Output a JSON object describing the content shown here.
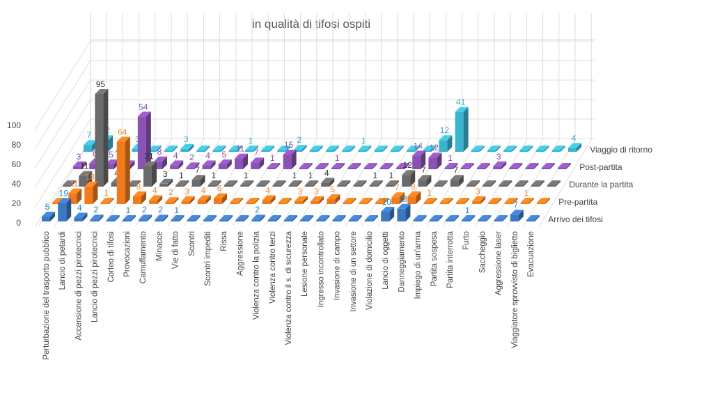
{
  "chart_data": {
    "type": "bar",
    "subtype": "3d-column",
    "title": "in qualità di tifosi ospiti",
    "ylim": [
      0,
      100
    ],
    "yticks": [
      0,
      20,
      40,
      60,
      80,
      100
    ],
    "grid": true,
    "legend": "row labels at right",
    "categories": [
      "Perturbazione del trasporto pubblico",
      "Lancio di petardi",
      "Accensione di pezzi pirotecnici",
      "Lancio di pezzi pirotecnici",
      "Corteo di tifosi",
      "Provocazioni",
      "Camuffamento",
      "Minacce",
      "Vie di fatto",
      "Scontri",
      "Scontri impediti",
      "Rissa",
      "Aggressione",
      "Violenza contro la polizia",
      "Violenza contro terzi",
      "Violenza contro il s. di sicurezza",
      "Lesione personale",
      "Ingresso incontrollato",
      "Invasione di campo",
      "Invasione di un settore",
      "Violazione di domicilio",
      "Lancio di oggetti",
      "Danneggiamento",
      "Impiego di un'arma",
      "Partita sospesa",
      "Partita interrotta",
      "Furto",
      "Saccheggio",
      "Aggressione laser",
      "Viaggiatore sprovvisto di biglietto",
      "Evacuazione"
    ],
    "series": [
      {
        "name": "Arrivo dei tifosi",
        "color": "#3b78c4",
        "label_color": "#2e86c1",
        "values": [
          5,
          19,
          4,
          2,
          0,
          1,
          2,
          2,
          1,
          0,
          0,
          0,
          0,
          2,
          0,
          0,
          0,
          0,
          0,
          0,
          0,
          10,
          13,
          0,
          0,
          0,
          1,
          0,
          0,
          7,
          0
        ]
      },
      {
        "name": "Pre-partita",
        "color": "#f07a1c",
        "label_color": "#ec8a3a",
        "values": [
          0,
          11,
          18,
          1,
          64,
          8,
          4,
          2,
          3,
          4,
          6,
          0,
          0,
          4,
          0,
          3,
          3,
          5,
          0,
          0,
          0,
          7,
          8,
          1,
          0,
          0,
          3,
          0,
          0,
          1,
          0
        ]
      },
      {
        "name": "Durante la partita",
        "color": "#6a6a6a",
        "label_color": "#333333",
        "values": [
          0,
          11,
          95,
          4,
          0,
          21,
          3,
          1,
          7,
          1,
          0,
          1,
          0,
          0,
          1,
          1,
          4,
          0,
          0,
          1,
          1,
          12,
          7,
          0,
          7,
          0,
          0,
          0,
          0,
          0,
          0
        ]
      },
      {
        "name": "Post-partita",
        "color": "#8a52b3",
        "label_color": "#8a52b3",
        "values": [
          3,
          6,
          5,
          4,
          54,
          8,
          4,
          2,
          4,
          5,
          11,
          7,
          1,
          15,
          0,
          0,
          1,
          0,
          0,
          0,
          0,
          14,
          12,
          1,
          0,
          0,
          3,
          0,
          0,
          0,
          0
        ]
      },
      {
        "name": "Viaggio di ritorno",
        "color": "#3cb4d0",
        "label_color": "#33a8c4",
        "values": [
          7,
          12,
          0,
          3,
          0,
          0,
          3,
          0,
          0,
          0,
          1,
          0,
          0,
          2,
          0,
          0,
          0,
          1,
          0,
          0,
          0,
          0,
          12,
          41,
          0,
          0,
          0,
          0,
          0,
          0,
          4
        ]
      }
    ]
  }
}
